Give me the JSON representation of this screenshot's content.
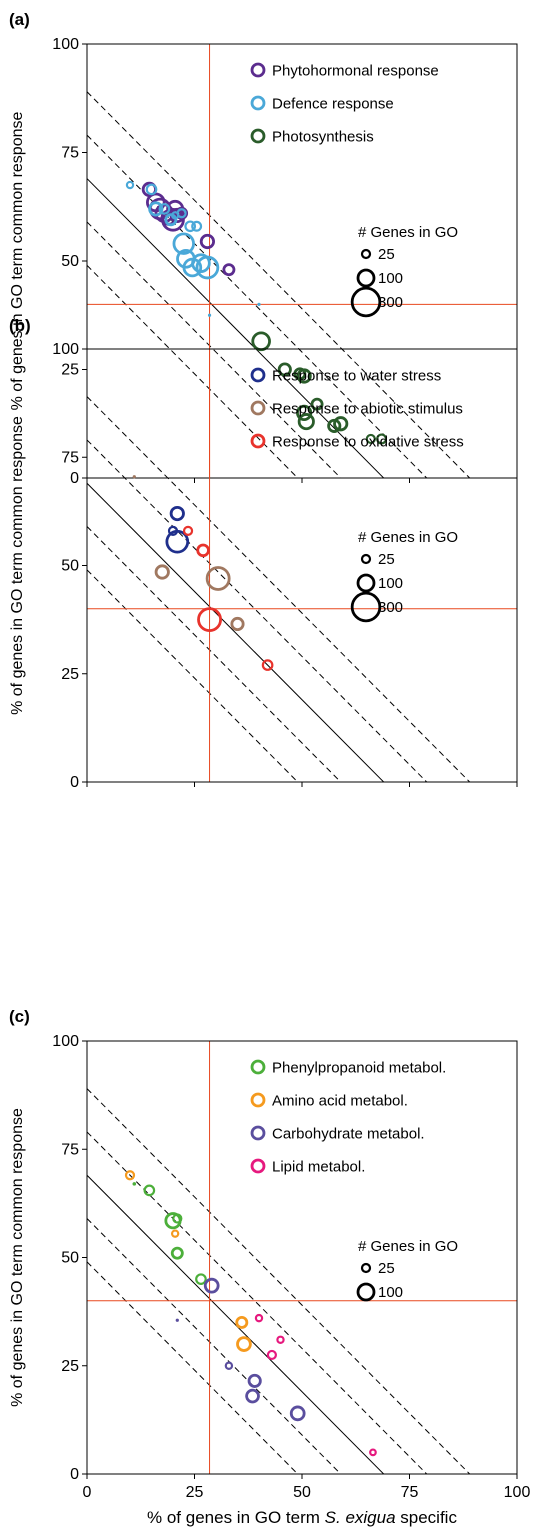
{
  "figure": {
    "xlabel_prefix": "% of genes in GO term ",
    "xlabel_italic": "S. exigua",
    "xlabel_suffix": " specific",
    "ylabel": "% of genes in GO term common response",
    "size_legend_title": "# Genes in GO"
  },
  "chart_data": [
    {
      "type": "scatter",
      "panel_label": "(a)",
      "xlim": [
        0,
        100
      ],
      "ylim": [
        0,
        100
      ],
      "x_ticks": [
        "0",
        "25",
        "50",
        "75",
        "100"
      ],
      "y_ticks": [
        "0",
        "25",
        "50",
        "75",
        "100"
      ],
      "show_x_tick_labels": false,
      "reference_lines": {
        "x": 28.5,
        "y": 40
      },
      "diagonal_intercepts": [
        49,
        59,
        69,
        79,
        89
      ],
      "solid_diagonal_intercept": 69,
      "legend_position": "top-right",
      "size_legend": [
        {
          "genes": 25,
          "label": "25"
        },
        {
          "genes": 100,
          "label": "100"
        },
        {
          "genes": 300,
          "label": "300"
        }
      ],
      "series": [
        {
          "name": "Phytohormonal response",
          "color": "#5b2c8e",
          "points": [
            {
              "x": 14.5,
              "y": 66.5,
              "genes": 60
            },
            {
              "x": 16,
              "y": 63.5,
              "genes": 110
            },
            {
              "x": 17,
              "y": 62,
              "genes": 150
            },
            {
              "x": 18,
              "y": 61,
              "genes": 110
            },
            {
              "x": 19,
              "y": 60,
              "genes": 70
            },
            {
              "x": 20,
              "y": 59.5,
              "genes": 170
            },
            {
              "x": 20.5,
              "y": 62,
              "genes": 90
            },
            {
              "x": 21,
              "y": 60.5,
              "genes": 60
            },
            {
              "x": 22,
              "y": 61,
              "genes": 40
            },
            {
              "x": 28,
              "y": 54.5,
              "genes": 60
            },
            {
              "x": 33,
              "y": 48,
              "genes": 40
            }
          ]
        },
        {
          "name": "Defence response",
          "color": "#4aa8d8",
          "points": [
            {
              "x": 10,
              "y": 67.5,
              "genes": 15
            },
            {
              "x": 15,
              "y": 66.5,
              "genes": 35
            },
            {
              "x": 16,
              "y": 62,
              "genes": 60
            },
            {
              "x": 18,
              "y": 62,
              "genes": 35
            },
            {
              "x": 19.5,
              "y": 59.5,
              "genes": 40
            },
            {
              "x": 20.5,
              "y": 60.5,
              "genes": 15
            },
            {
              "x": 22,
              "y": 61,
              "genes": 25
            },
            {
              "x": 22.5,
              "y": 54,
              "genes": 150
            },
            {
              "x": 23,
              "y": 50.5,
              "genes": 110
            },
            {
              "x": 24,
              "y": 58,
              "genes": 35
            },
            {
              "x": 25.5,
              "y": 58,
              "genes": 30
            },
            {
              "x": 26.5,
              "y": 49.5,
              "genes": 110
            },
            {
              "x": 28,
              "y": 48.5,
              "genes": 170
            },
            {
              "x": 28.5,
              "y": 37.5,
              "genes": 4
            },
            {
              "x": 40,
              "y": 40,
              "genes": 2
            },
            {
              "x": 24.5,
              "y": 48.5,
              "genes": 110
            }
          ]
        },
        {
          "name": "Photosynthesis",
          "color": "#2a5c2a",
          "points": [
            {
              "x": 40.5,
              "y": 31.5,
              "genes": 110
            },
            {
              "x": 46,
              "y": 25,
              "genes": 50
            },
            {
              "x": 49.5,
              "y": 24,
              "genes": 40
            },
            {
              "x": 50.5,
              "y": 23.5,
              "genes": 60
            },
            {
              "x": 50.5,
              "y": 15,
              "genes": 70
            },
            {
              "x": 51,
              "y": 13,
              "genes": 80
            },
            {
              "x": 53.5,
              "y": 17,
              "genes": 40
            },
            {
              "x": 57.5,
              "y": 12,
              "genes": 50
            },
            {
              "x": 59,
              "y": 12.5,
              "genes": 60
            },
            {
              "x": 66,
              "y": 9,
              "genes": 25
            },
            {
              "x": 68.5,
              "y": 9,
              "genes": 30
            }
          ]
        }
      ]
    },
    {
      "type": "scatter",
      "panel_label": "(b)",
      "xlim": [
        0,
        100
      ],
      "ylim": [
        0,
        100
      ],
      "x_ticks": [
        "0",
        "25",
        "50",
        "75",
        "100"
      ],
      "y_ticks": [
        "0",
        "25",
        "50",
        "75",
        "100"
      ],
      "show_x_tick_labels": false,
      "reference_lines": {
        "x": 28.5,
        "y": 40
      },
      "diagonal_intercepts": [
        49,
        59,
        69,
        79,
        89
      ],
      "solid_diagonal_intercept": 69,
      "legend_position": "top-right",
      "size_legend": [
        {
          "genes": 25,
          "label": "25"
        },
        {
          "genes": 100,
          "label": "100"
        },
        {
          "genes": 300,
          "label": "300"
        }
      ],
      "series": [
        {
          "name": "Response to water stress",
          "color": "#1f2f8c",
          "points": [
            {
              "x": 21,
              "y": 62,
              "genes": 60
            },
            {
              "x": 20,
              "y": 58,
              "genes": 25
            },
            {
              "x": 21,
              "y": 55.5,
              "genes": 170
            }
          ]
        },
        {
          "name": "Response to abiotic stimulus",
          "color": "#a07860",
          "points": [
            {
              "x": 11,
              "y": 70.5,
              "genes": 4
            },
            {
              "x": 17.5,
              "y": 48.5,
              "genes": 60
            },
            {
              "x": 30.5,
              "y": 47,
              "genes": 190
            },
            {
              "x": 35,
              "y": 36.5,
              "genes": 50
            }
          ]
        },
        {
          "name": "Response to oxidative stress",
          "color": "#e8332c",
          "points": [
            {
              "x": 23.5,
              "y": 58,
              "genes": 25
            },
            {
              "x": 27,
              "y": 53.5,
              "genes": 45
            },
            {
              "x": 28.5,
              "y": 37.5,
              "genes": 190
            },
            {
              "x": 42,
              "y": 27,
              "genes": 35
            }
          ]
        }
      ]
    },
    {
      "type": "scatter",
      "panel_label": "(c)",
      "xlim": [
        0,
        100
      ],
      "ylim": [
        0,
        100
      ],
      "x_ticks": [
        "0",
        "25",
        "50",
        "75",
        "100"
      ],
      "y_ticks": [
        "0",
        "25",
        "50",
        "75",
        "100"
      ],
      "show_x_tick_labels": true,
      "reference_lines": {
        "x": 28.5,
        "y": 40
      },
      "diagonal_intercepts": [
        49,
        59,
        69,
        79,
        89
      ],
      "solid_diagonal_intercept": 69,
      "legend_position": "top-right",
      "size_legend": [
        {
          "genes": 25,
          "label": "25"
        },
        {
          "genes": 100,
          "label": "100"
        }
      ],
      "series": [
        {
          "name": "Phenylpropanoid metabol.",
          "color": "#4caf3a",
          "points": [
            {
              "x": 11,
              "y": 67,
              "genes": 5
            },
            {
              "x": 14.5,
              "y": 65.5,
              "genes": 35
            },
            {
              "x": 20,
              "y": 58.5,
              "genes": 80
            },
            {
              "x": 21,
              "y": 59,
              "genes": 25
            },
            {
              "x": 21,
              "y": 51,
              "genes": 40
            },
            {
              "x": 26.5,
              "y": 45,
              "genes": 35
            }
          ]
        },
        {
          "name": "Amino acid metabol.",
          "color": "#f59a1e",
          "points": [
            {
              "x": 10,
              "y": 69,
              "genes": 25
            },
            {
              "x": 20.5,
              "y": 55.5,
              "genes": 15
            },
            {
              "x": 36,
              "y": 35,
              "genes": 40
            },
            {
              "x": 36.5,
              "y": 30,
              "genes": 65
            }
          ]
        },
        {
          "name": "Carbohydrate metabol.",
          "color": "#5a4e9e",
          "points": [
            {
              "x": 21,
              "y": 35.5,
              "genes": 2
            },
            {
              "x": 29,
              "y": 43.5,
              "genes": 65
            },
            {
              "x": 33,
              "y": 25,
              "genes": 15
            },
            {
              "x": 38.5,
              "y": 18,
              "genes": 55
            },
            {
              "x": 39,
              "y": 21.5,
              "genes": 50
            },
            {
              "x": 49,
              "y": 14,
              "genes": 65
            }
          ]
        },
        {
          "name": "Lipid metabol.",
          "color": "#e6197e",
          "points": [
            {
              "x": 40,
              "y": 36,
              "genes": 15
            },
            {
              "x": 43,
              "y": 27.5,
              "genes": 25
            },
            {
              "x": 45,
              "y": 31,
              "genes": 15
            },
            {
              "x": 66.5,
              "y": 5,
              "genes": 12
            }
          ]
        }
      ]
    }
  ]
}
